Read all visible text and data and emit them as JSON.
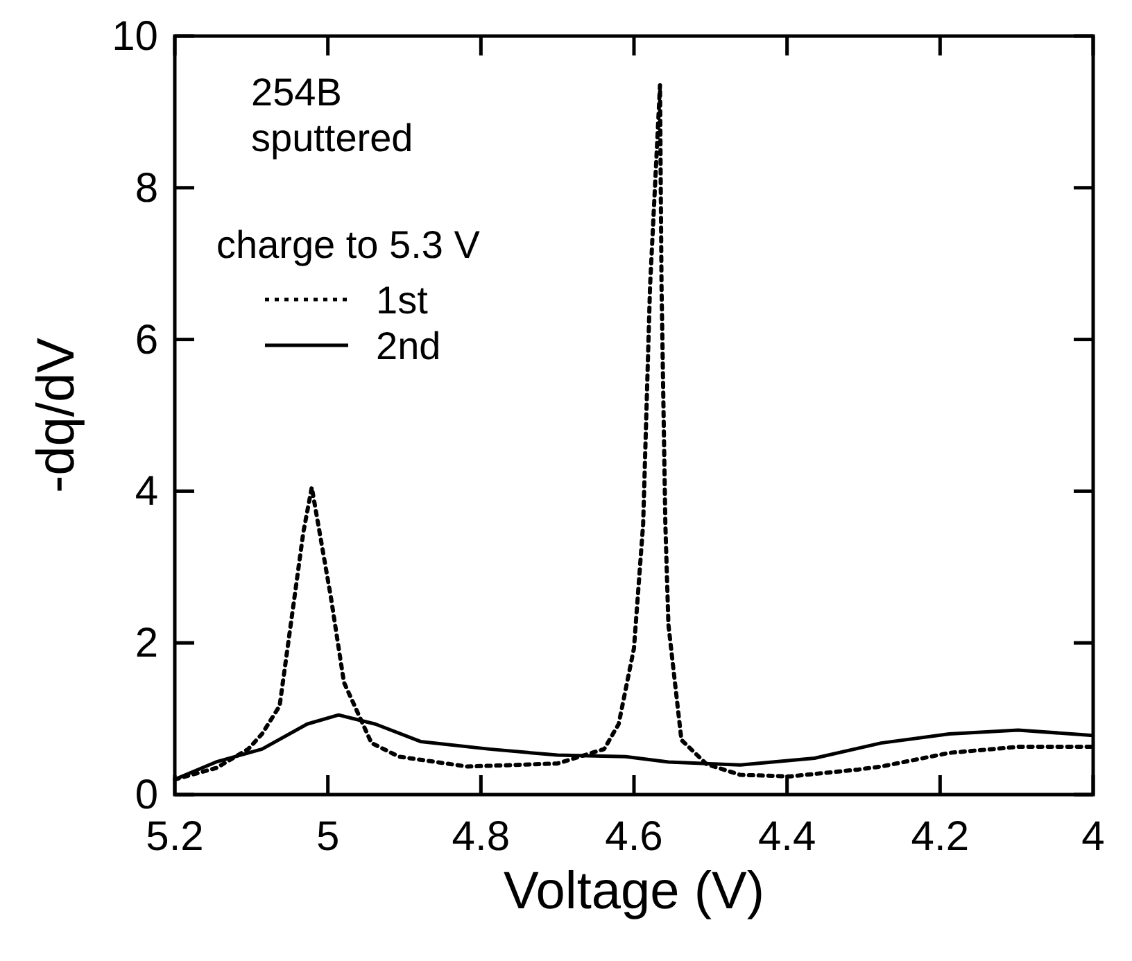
{
  "chart_data": {
    "type": "line",
    "xlabel": "Voltage (V)",
    "ylabel": "-dq/dV",
    "xlim": [
      5.2,
      4
    ],
    "ylim": [
      0,
      10
    ],
    "xticks": [
      5.2,
      5,
      4.8,
      4.6,
      4.4,
      4.2,
      4
    ],
    "yticks": [
      0,
      2,
      4,
      6,
      8,
      10
    ],
    "grid": false,
    "legend": "top left",
    "legend_title": "charge to 5.3 V",
    "annotations": [
      "254B",
      "sputtered"
    ],
    "series": [
      {
        "name": "1st",
        "color": "#000000",
        "line_style": "dotted",
        "x": [
          5.2,
          5.146,
          5.104,
          5.086,
          5.063,
          5.032,
          5.021,
          4.996,
          4.979,
          4.943,
          4.907,
          4.818,
          4.7,
          4.639,
          4.62,
          4.6,
          4.588,
          4.579,
          4.566,
          4.564,
          4.559,
          4.555,
          4.538,
          4.505,
          4.461,
          4.396,
          4.307,
          4.277,
          4.188,
          4.098,
          4.0
        ],
        "values": [
          0.2,
          0.35,
          0.6,
          0.8,
          1.17,
          3.46,
          4.05,
          2.6,
          1.48,
          0.68,
          0.5,
          0.37,
          0.41,
          0.6,
          0.93,
          1.93,
          3.57,
          6.7,
          9.35,
          6.7,
          3.57,
          2.24,
          0.72,
          0.4,
          0.26,
          0.24,
          0.33,
          0.37,
          0.55,
          0.63,
          0.63
        ]
      },
      {
        "name": "2nd",
        "color": "#000000",
        "line_style": "solid",
        "x": [
          5.2,
          5.146,
          5.086,
          5.027,
          4.986,
          4.938,
          4.879,
          4.789,
          4.7,
          4.611,
          4.555,
          4.461,
          4.364,
          4.277,
          4.188,
          4.098,
          4.0
        ],
        "values": [
          0.2,
          0.43,
          0.6,
          0.93,
          1.05,
          0.93,
          0.7,
          0.6,
          0.52,
          0.5,
          0.43,
          0.39,
          0.48,
          0.68,
          0.8,
          0.85,
          0.78
        ]
      }
    ]
  }
}
